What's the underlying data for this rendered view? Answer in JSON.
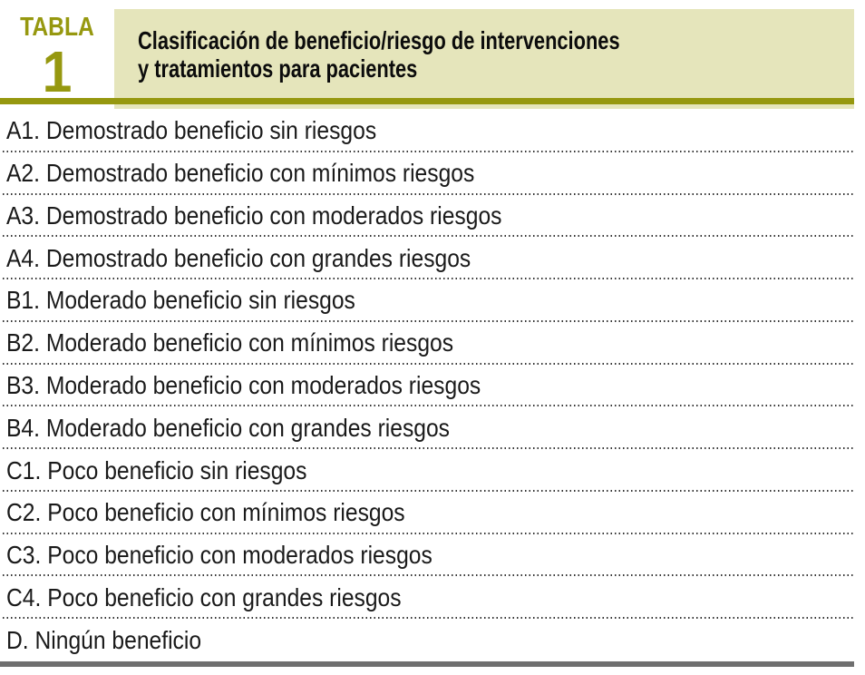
{
  "figure": {
    "kicker": "TABLA",
    "number": "1",
    "title_line1": "Clasificación de beneficio/riesgo de intervenciones",
    "title_line2": "y tratamientos para pacientes"
  },
  "rows": [
    "A1. Demostrado beneficio sin riesgos",
    "A2. Demostrado beneficio con mínimos riesgos",
    "A3. Demostrado beneficio con moderados riesgos",
    "A4. Demostrado beneficio con grandes riesgos",
    "B1. Moderado beneficio sin riesgos",
    "B2. Moderado beneficio con mínimos riesgos",
    "B3. Moderado beneficio con moderados riesgos",
    "B4. Moderado beneficio con grandes riesgos",
    "C1. Poco beneficio sin riesgos",
    "C2. Poco beneficio con mínimos riesgos",
    "C3. Poco beneficio con moderados riesgos",
    "C4. Poco beneficio con grandes riesgos",
    "D. Ningún beneficio"
  ],
  "colors": {
    "olive": "#96980f",
    "header_background": "#e5e5bb",
    "bottom_bar": "#6f6f6f",
    "row_text": "#1a1a1a",
    "title_text": "#0c0c0c"
  }
}
